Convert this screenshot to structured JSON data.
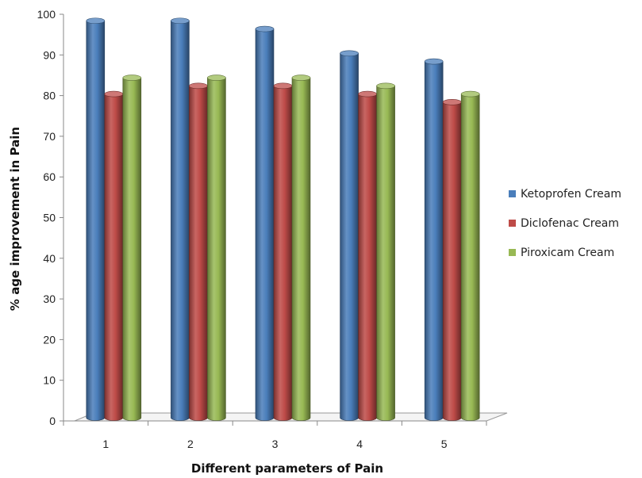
{
  "chart_data": {
    "type": "bar",
    "categories": [
      "1",
      "2",
      "3",
      "4",
      "5"
    ],
    "series": [
      {
        "name": "Ketoprofen Cream",
        "values": [
          98,
          98,
          96,
          90,
          88
        ],
        "color": "#4a7ebb"
      },
      {
        "name": "Diclofenac Cream",
        "values": [
          80,
          82,
          82,
          80,
          78
        ],
        "color": "#be4b48"
      },
      {
        "name": "Piroxicam Cream",
        "values": [
          84,
          84,
          84,
          82,
          80
        ],
        "color": "#98b954"
      }
    ],
    "xlabel": "Different parameters of Pain",
    "ylabel": "% age improvement in Pain",
    "ylim": [
      0,
      100
    ],
    "yticks": [
      "0",
      "10",
      "20",
      "30",
      "40",
      "50",
      "60",
      "70",
      "80",
      "90",
      "100"
    ],
    "legend": "right",
    "grid": false,
    "style": "3d-cylinder"
  }
}
